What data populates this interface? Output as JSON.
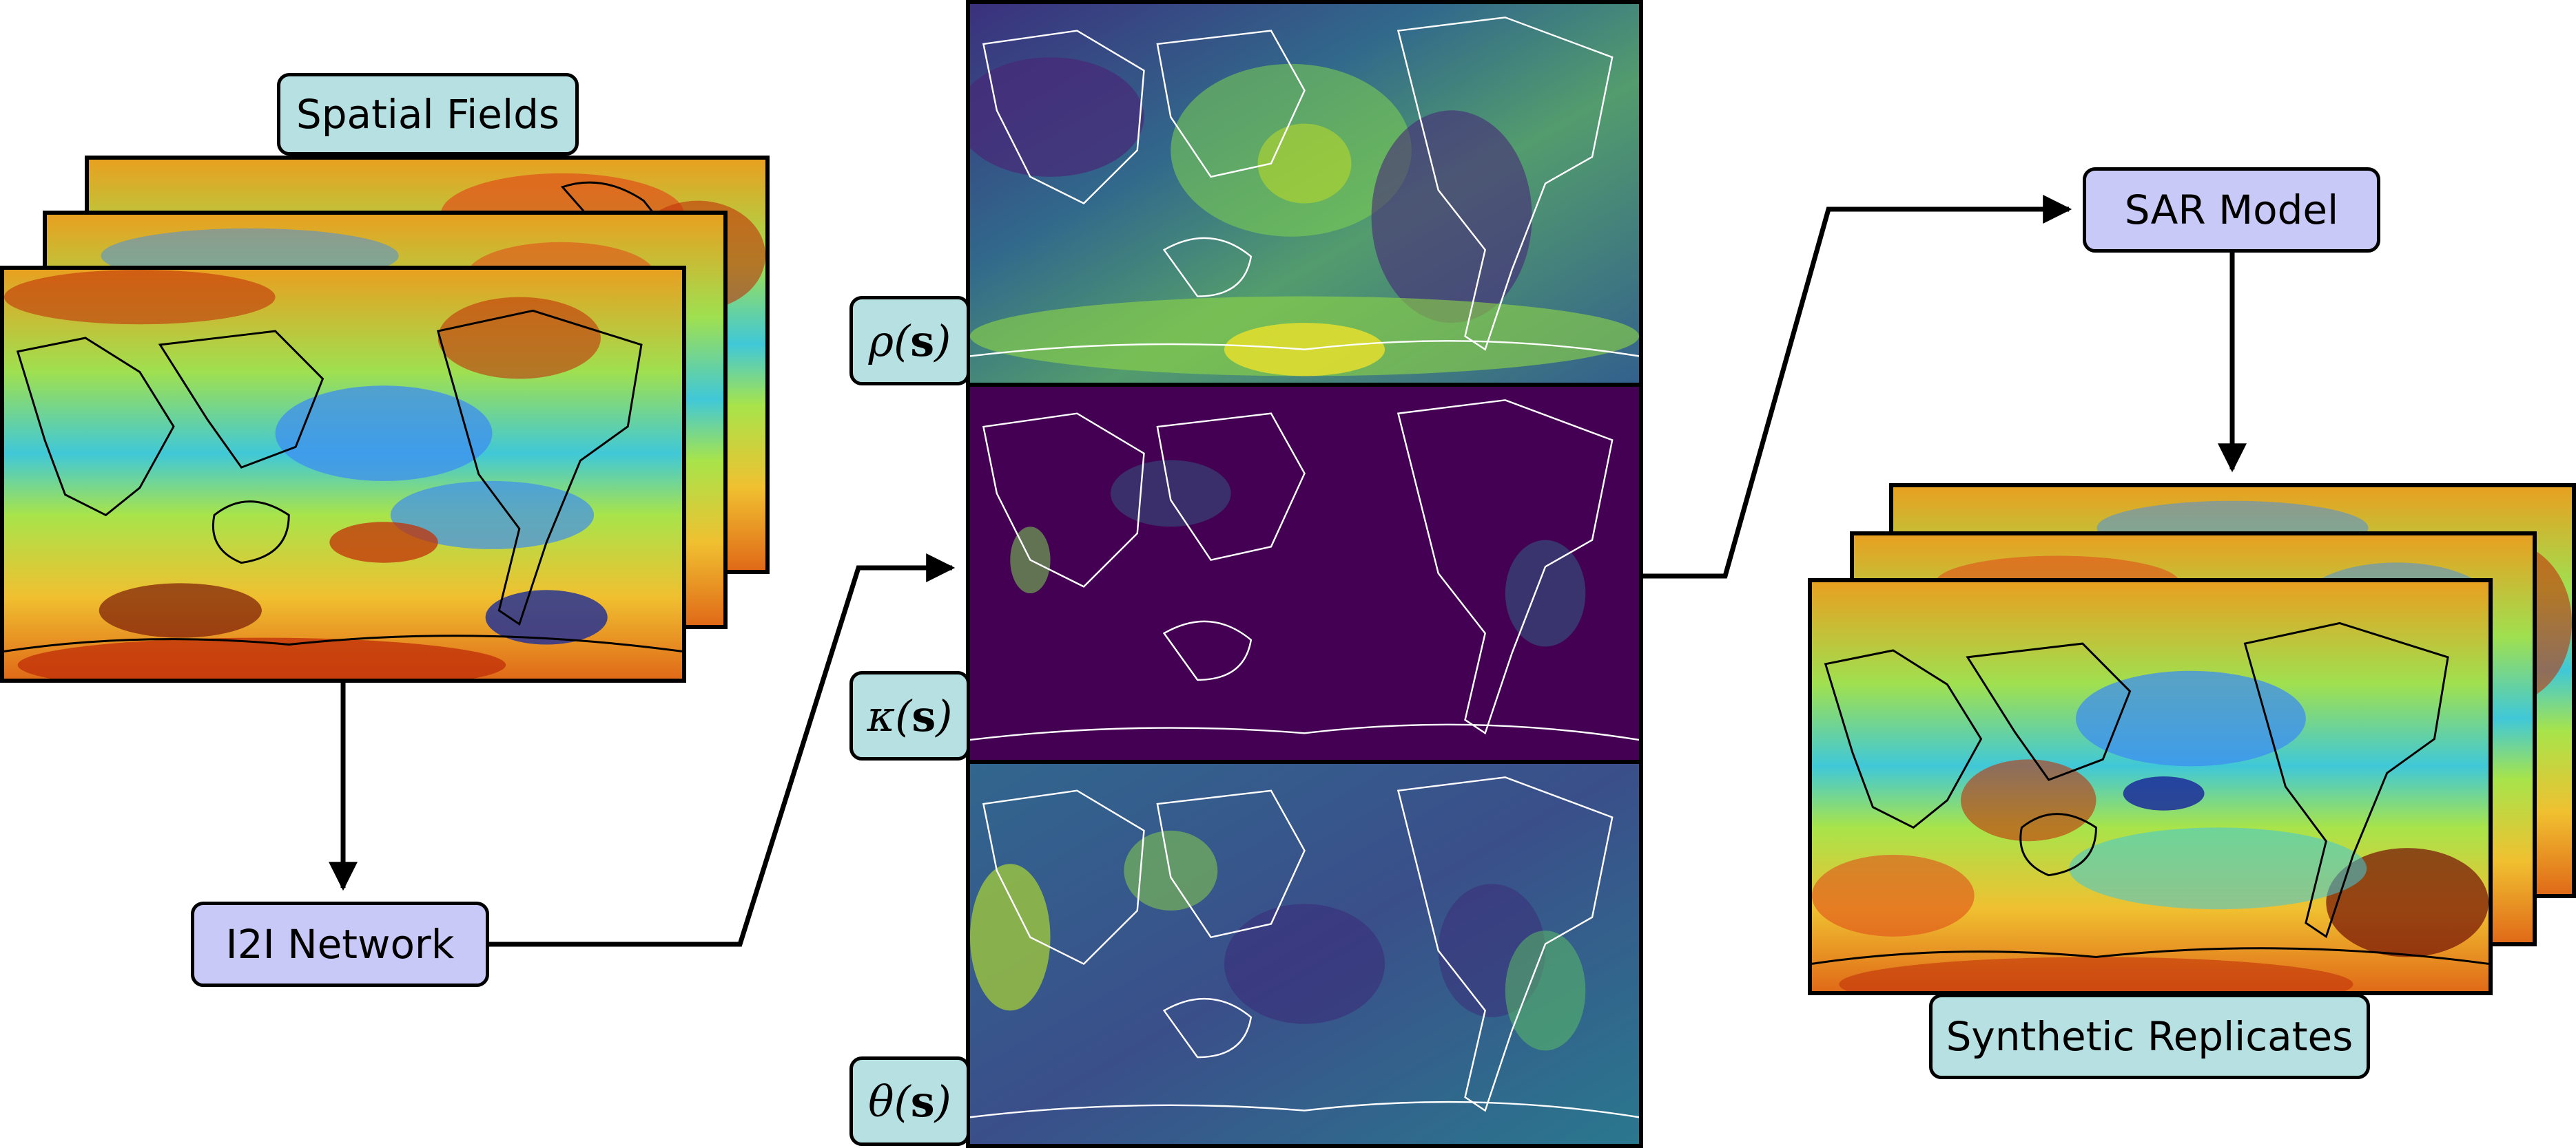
{
  "labels": {
    "spatial_fields": "Spatial Fields",
    "i2i_network": "I2I Network",
    "sar_model": "SAR Model",
    "synthetic_replicates": "Synthetic Replicates"
  },
  "parameters": [
    {
      "symbol": "ρ",
      "arg": "s"
    },
    {
      "symbol": "κ",
      "arg": "s"
    },
    {
      "symbol": "θ",
      "arg": "s"
    }
  ],
  "colors": {
    "label_teal": "#b7e0e2",
    "label_lavender": "#c8c9f7",
    "viridis_dark": "#440154",
    "viridis_mid": "#2c728e",
    "viridis_light": "#fde725",
    "turbo_blue": "#3e8ef0",
    "turbo_red": "#c2320a"
  }
}
